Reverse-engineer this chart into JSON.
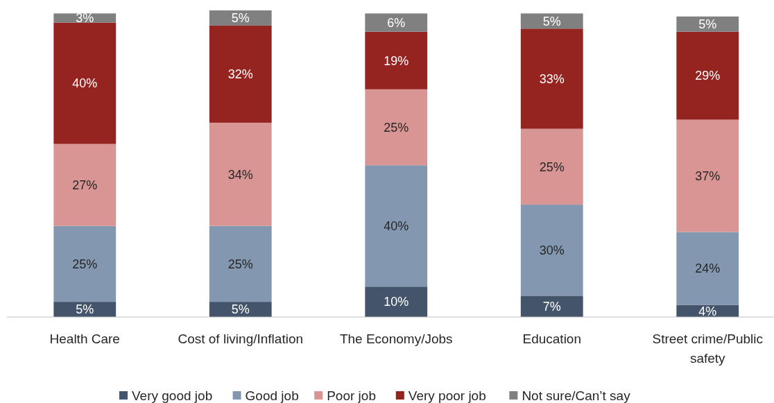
{
  "chart_data": {
    "type": "bar",
    "stacked": true,
    "legend": "bottom",
    "categories": [
      "Health Care",
      "Cost of living/Inflation",
      "The Economy/Jobs",
      "Education",
      "Street crime/Public safety"
    ],
    "series": [
      {
        "name": "Very good job",
        "color": "#44546a",
        "values": [
          5,
          5,
          10,
          7,
          4
        ],
        "value_labels": [
          "5%",
          "5%",
          "10%",
          "7%",
          "4%"
        ]
      },
      {
        "name": "Good job",
        "color": "#8497b0",
        "values": [
          25,
          25,
          40,
          30,
          24
        ],
        "value_labels": [
          "25%",
          "25%",
          "40%",
          "30%",
          "24%"
        ]
      },
      {
        "name": "Poor job",
        "color": "#d99594",
        "values": [
          27,
          34,
          25,
          25,
          37
        ],
        "value_labels": [
          "27%",
          "34%",
          "25%",
          "25%",
          "37%"
        ]
      },
      {
        "name": "Very poor job",
        "color": "#952421",
        "values": [
          40,
          32,
          19,
          33,
          29
        ],
        "value_labels": [
          "40%",
          "32%",
          "19%",
          "33%",
          "29%"
        ]
      },
      {
        "name": "Not sure/Can’t say",
        "color": "#808080",
        "values": [
          3,
          5,
          6,
          5,
          5
        ],
        "value_labels": [
          "3%",
          "5%",
          "6%",
          "5%",
          "5%"
        ]
      }
    ]
  }
}
